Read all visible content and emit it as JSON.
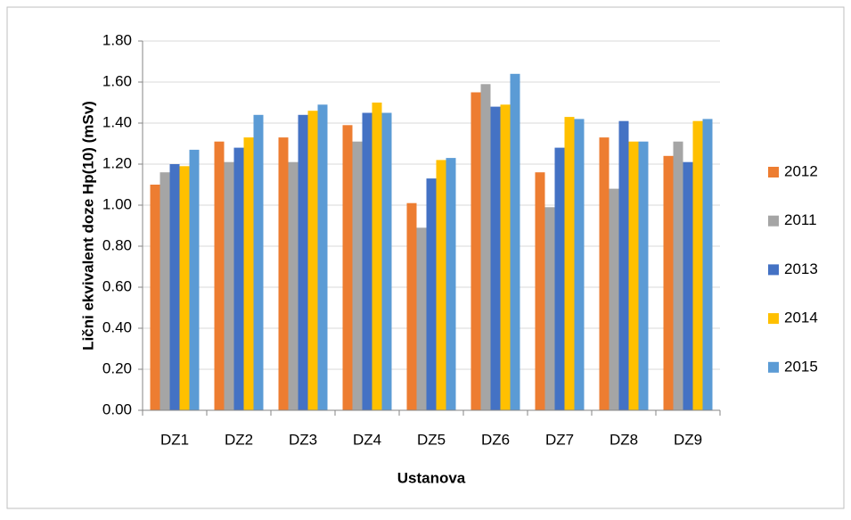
{
  "chart_data": {
    "type": "bar",
    "x_label": "Ustanova",
    "y_label": "Lični ekvivalent doze Hp(10) (mSv)",
    "categories": [
      "DZ1",
      "DZ2",
      "DZ3",
      "DZ4",
      "DZ5",
      "DZ6",
      "DZ7",
      "DZ8",
      "DZ9"
    ],
    "series": [
      {
        "name": "2012",
        "color": "#ed7d31",
        "values": [
          1.1,
          1.31,
          1.33,
          1.39,
          1.01,
          1.55,
          1.16,
          1.33,
          1.24
        ]
      },
      {
        "name": "2011",
        "color": "#a5a5a5",
        "values": [
          1.16,
          1.21,
          1.21,
          1.31,
          0.89,
          1.59,
          0.99,
          1.08,
          1.31
        ]
      },
      {
        "name": "2013",
        "color": "#4472c4",
        "values": [
          1.2,
          1.28,
          1.44,
          1.45,
          1.13,
          1.48,
          1.28,
          1.41,
          1.21
        ]
      },
      {
        "name": "2014",
        "color": "#ffc000",
        "values": [
          1.19,
          1.33,
          1.46,
          1.5,
          1.22,
          1.49,
          1.43,
          1.31,
          1.41
        ]
      },
      {
        "name": "2015",
        "color": "#5b9bd5",
        "values": [
          1.27,
          1.44,
          1.49,
          1.45,
          1.23,
          1.64,
          1.42,
          1.31,
          1.42
        ]
      }
    ],
    "ylim": [
      0,
      1.8
    ],
    "yticks": [
      {
        "value": 0,
        "label": "0.00"
      },
      {
        "value": 0.2,
        "label": "0.20"
      },
      {
        "value": 0.4,
        "label": "0.40"
      },
      {
        "value": 0.6,
        "label": "0.60"
      },
      {
        "value": 0.8,
        "label": "0.80"
      },
      {
        "value": 1.0,
        "label": "1.00"
      },
      {
        "value": 1.2,
        "label": "1.20"
      },
      {
        "value": 1.4,
        "label": "1.40"
      },
      {
        "value": 1.6,
        "label": "1.60"
      },
      {
        "value": 1.8,
        "label": "1.80"
      }
    ],
    "grid": true,
    "legend": "right"
  }
}
